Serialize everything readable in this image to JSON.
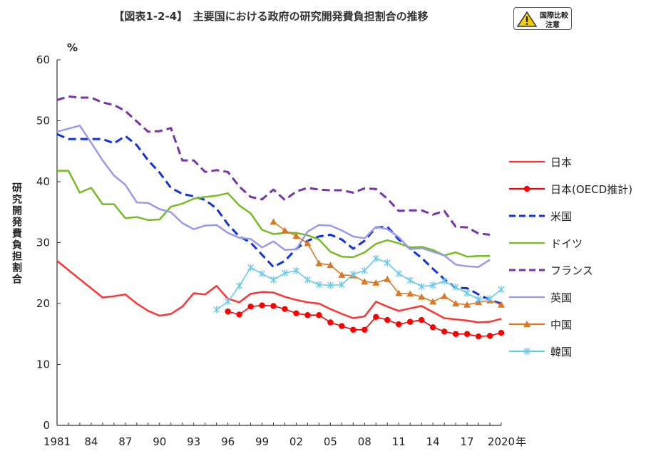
{
  "title": "【図表1-2-4】　主要国における政府の研究開発費負担割合の推移",
  "badge": {
    "line1": "国際比較",
    "line2": "注意",
    "icon": "warning-triangle-icon"
  },
  "chart_data": {
    "type": "line",
    "title": "【図表1-2-4】　主要国における政府の研究開発費負担割合の推移",
    "ylabel": "研究開発費負担割合",
    "unit": "%",
    "x_suffix": "年",
    "xlim": [
      1981,
      2020
    ],
    "ylim": [
      0,
      60
    ],
    "yticks": [
      0,
      10,
      20,
      30,
      40,
      50,
      60
    ],
    "xticks": [
      {
        "x": 1981,
        "label": "1981"
      },
      {
        "x": 1984,
        "label": "84"
      },
      {
        "x": 1987,
        "label": "87"
      },
      {
        "x": 1990,
        "label": "90"
      },
      {
        "x": 1993,
        "label": "93"
      },
      {
        "x": 1996,
        "label": "96"
      },
      {
        "x": 1999,
        "label": "99"
      },
      {
        "x": 2002,
        "label": "02"
      },
      {
        "x": 2005,
        "label": "05"
      },
      {
        "x": 2008,
        "label": "08"
      },
      {
        "x": 2011,
        "label": "11"
      },
      {
        "x": 2014,
        "label": "14"
      },
      {
        "x": 2017,
        "label": "17"
      },
      {
        "x": 2020,
        "label": "2020"
      }
    ],
    "legend_position": "right",
    "series": [
      {
        "name": "日本",
        "color": "#ff3333",
        "dash": false,
        "marker": "none",
        "x": [
          1981,
          1982,
          1983,
          1984,
          1985,
          1986,
          1987,
          1988,
          1989,
          1990,
          1991,
          1992,
          1993,
          1994,
          1995,
          1996,
          1997,
          1998,
          1999,
          2000,
          2001,
          2002,
          2003,
          2004,
          2005,
          2006,
          2007,
          2008,
          2009,
          2010,
          2011,
          2012,
          2013,
          2014,
          2015,
          2016,
          2017,
          2018,
          2019,
          2020
        ],
        "y": [
          27.0,
          25.5,
          24.0,
          22.5,
          21.0,
          21.2,
          21.5,
          20.0,
          18.8,
          18.0,
          18.3,
          19.5,
          21.7,
          21.5,
          22.9,
          20.8,
          20.2,
          21.6,
          21.9,
          21.8,
          21.1,
          20.6,
          20.2,
          20.0,
          19.1,
          18.3,
          17.6,
          17.9,
          20.3,
          19.5,
          18.8,
          19.2,
          19.6,
          18.6,
          17.6,
          17.4,
          17.2,
          16.9,
          17.0,
          17.5
        ]
      },
      {
        "name": "日本(OECD推計)",
        "color": "#ff0000",
        "dash": false,
        "marker": "circle",
        "x": [
          1996,
          1997,
          1998,
          1999,
          2000,
          2001,
          2002,
          2003,
          2004,
          2005,
          2006,
          2007,
          2008,
          2009,
          2010,
          2011,
          2012,
          2013,
          2014,
          2015,
          2016,
          2017,
          2018,
          2019,
          2020
        ],
        "y": [
          18.7,
          18.2,
          19.5,
          19.7,
          19.6,
          19.1,
          18.4,
          18.1,
          18.1,
          16.9,
          16.3,
          15.7,
          15.7,
          17.8,
          17.3,
          16.6,
          17.0,
          17.3,
          16.1,
          15.4,
          15.0,
          15.0,
          14.6,
          14.7,
          15.2
        ]
      },
      {
        "name": "米国",
        "color": "#1133dd",
        "dash": true,
        "marker": "none",
        "x": [
          1981,
          1982,
          1983,
          1984,
          1985,
          1986,
          1987,
          1988,
          1989,
          1990,
          1991,
          1992,
          1993,
          1994,
          1995,
          1996,
          1997,
          1998,
          1999,
          2000,
          2001,
          2002,
          2003,
          2004,
          2005,
          2006,
          2007,
          2008,
          2009,
          2010,
          2011,
          2012,
          2013,
          2014,
          2015,
          2016,
          2017,
          2018,
          2019,
          2020
        ],
        "y": [
          47.8,
          47.0,
          47.0,
          47.0,
          47.0,
          46.3,
          47.5,
          46.0,
          43.5,
          41.5,
          39.0,
          38.0,
          37.6,
          37.0,
          35.6,
          33.0,
          31.0,
          30.0,
          28.0,
          26.0,
          27.0,
          29.0,
          30.3,
          31.0,
          31.3,
          30.5,
          29.0,
          30.3,
          32.5,
          32.6,
          30.5,
          29.0,
          27.5,
          25.7,
          24.0,
          22.6,
          22.5,
          21.5,
          20.6,
          20.0
        ]
      },
      {
        "name": "ドイツ",
        "color": "#77bb22",
        "dash": false,
        "marker": "none",
        "x": [
          1981,
          1982,
          1983,
          1984,
          1985,
          1986,
          1987,
          1988,
          1989,
          1990,
          1991,
          1992,
          1993,
          1994,
          1995,
          1996,
          1997,
          1998,
          1999,
          2000,
          2001,
          2002,
          2003,
          2004,
          2005,
          2006,
          2007,
          2008,
          2009,
          2010,
          2011,
          2012,
          2013,
          2014,
          2015,
          2016,
          2017,
          2018,
          2019
        ],
        "y": [
          41.8,
          41.8,
          38.2,
          39.0,
          36.3,
          36.3,
          34.0,
          34.2,
          33.7,
          33.8,
          35.9,
          36.4,
          37.2,
          37.5,
          37.7,
          38.1,
          36.1,
          34.8,
          32.1,
          31.4,
          31.6,
          31.6,
          31.2,
          30.5,
          28.5,
          27.7,
          27.6,
          28.4,
          29.8,
          30.4,
          29.9,
          29.2,
          29.3,
          28.8,
          27.9,
          28.4,
          27.7,
          27.8,
          27.8
        ]
      },
      {
        "name": "フランス",
        "color": "#7733aa",
        "dash": true,
        "marker": "none",
        "x": [
          1981,
          1982,
          1983,
          1984,
          1985,
          1986,
          1987,
          1988,
          1989,
          1990,
          1991,
          1992,
          1993,
          1994,
          1995,
          1996,
          1997,
          1998,
          1999,
          2000,
          2001,
          2002,
          2003,
          2004,
          2005,
          2006,
          2007,
          2008,
          2009,
          2010,
          2011,
          2012,
          2013,
          2014,
          2015,
          2016,
          2017,
          2018,
          2019
        ],
        "y": [
          53.4,
          54.0,
          53.8,
          53.8,
          53.0,
          52.6,
          51.6,
          49.9,
          48.2,
          48.3,
          48.8,
          43.5,
          43.5,
          41.6,
          41.9,
          41.6,
          39.2,
          37.5,
          37.1,
          38.7,
          37.0,
          38.4,
          39.0,
          38.7,
          38.6,
          38.6,
          38.2,
          38.9,
          38.8,
          37.2,
          35.2,
          35.3,
          35.3,
          34.6,
          35.2,
          32.6,
          32.5,
          31.5,
          31.3
        ]
      },
      {
        "name": "英国",
        "color": "#9999ee",
        "dash": false,
        "marker": "none",
        "x": [
          1981,
          1982,
          1983,
          1984,
          1985,
          1986,
          1987,
          1988,
          1989,
          1990,
          1991,
          1992,
          1993,
          1994,
          1995,
          1996,
          1997,
          1998,
          1999,
          2000,
          2001,
          2002,
          2003,
          2004,
          2005,
          2006,
          2007,
          2008,
          2009,
          2010,
          2011,
          2012,
          2013,
          2014,
          2015,
          2016,
          2017,
          2018,
          2019
        ],
        "y": [
          48.2,
          48.7,
          49.2,
          46.4,
          43.5,
          41.0,
          39.5,
          36.6,
          36.5,
          35.5,
          35.0,
          33.2,
          32.2,
          32.8,
          32.9,
          31.6,
          30.8,
          30.6,
          29.2,
          30.2,
          28.8,
          28.9,
          31.8,
          32.9,
          32.8,
          32.0,
          31.0,
          30.7,
          32.6,
          32.2,
          30.9,
          28.9,
          29.1,
          28.5,
          27.9,
          26.4,
          26.1,
          26.0,
          27.2
        ]
      },
      {
        "name": "中国",
        "color": "#dd7722",
        "dash": false,
        "marker": "triangle",
        "x": [
          2000,
          2001,
          2002,
          2003,
          2004,
          2005,
          2006,
          2007,
          2008,
          2009,
          2010,
          2011,
          2012,
          2013,
          2014,
          2015,
          2016,
          2017,
          2018,
          2019,
          2020
        ],
        "y": [
          33.4,
          32.0,
          31.1,
          29.9,
          26.6,
          26.3,
          24.7,
          24.6,
          23.6,
          23.4,
          24.0,
          21.7,
          21.6,
          21.1,
          20.3,
          21.2,
          20.0,
          19.8,
          20.2,
          20.5,
          19.8
        ]
      },
      {
        "name": "韓国",
        "color": "#66ccee",
        "dash": false,
        "marker": "x",
        "x": [
          1995,
          1996,
          1997,
          1998,
          1999,
          2000,
          2001,
          2002,
          2003,
          2004,
          2005,
          2006,
          2007,
          2008,
          2009,
          2010,
          2011,
          2012,
          2013,
          2014,
          2015,
          2016,
          2017,
          2018,
          2019,
          2020
        ],
        "y": [
          19.0,
          20.3,
          22.9,
          25.9,
          24.9,
          23.9,
          25.0,
          25.4,
          23.9,
          23.1,
          23.0,
          23.1,
          24.8,
          25.4,
          27.4,
          26.7,
          24.9,
          23.8,
          22.8,
          23.0,
          23.7,
          22.7,
          21.7,
          20.7,
          20.8,
          22.3
        ]
      }
    ]
  }
}
